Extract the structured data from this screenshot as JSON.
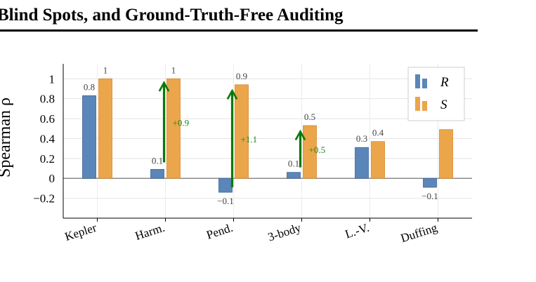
{
  "page": {
    "title": "Blind Spots, and Ground-Truth-Free Auditing"
  },
  "chart_data": {
    "type": "bar",
    "ylabel": "Spearman ρ",
    "ylim": [
      -0.4,
      1.15
    ],
    "yticks": [
      -0.2,
      0,
      0.2,
      0.4,
      0.6,
      0.8,
      1
    ],
    "ytick_labels": [
      "−0.2",
      "0",
      "0.2",
      "0.4",
      "0.6",
      "0.8",
      "1"
    ],
    "grid": true,
    "legend_position": "top-right",
    "categories": [
      "Kepler",
      "Harm.",
      "Pend.",
      "3-body",
      "L.-V.",
      "Duffing"
    ],
    "series": [
      {
        "name": "R",
        "color": "#5b86b9",
        "values": [
          0.83,
          0.09,
          -0.14,
          0.06,
          0.31,
          -0.09
        ],
        "labels": [
          "0.8",
          "0.1",
          "−0.1",
          "0.1",
          "0.3",
          "−0.1"
        ]
      },
      {
        "name": "S",
        "color": "#eba54b",
        "values": [
          1.0,
          1.0,
          0.94,
          0.53,
          0.37,
          0.49
        ],
        "labels": [
          "1",
          "1",
          "0.9",
          "0.5",
          "0.4",
          ""
        ]
      }
    ],
    "annotations": [
      {
        "category": "Harm.",
        "from": 0.16,
        "to": 0.96,
        "text": "+0.9",
        "color": "#0a7a0a"
      },
      {
        "category": "Pend.",
        "from": -0.09,
        "to": 0.88,
        "text": "+1.1",
        "color": "#0a7a0a"
      },
      {
        "category": "3-body",
        "from": 0.11,
        "to": 0.47,
        "text": "+0.5",
        "color": "#0a7a0a"
      }
    ]
  }
}
